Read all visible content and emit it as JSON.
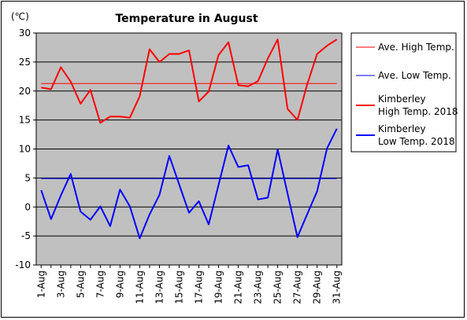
{
  "chart_data": {
    "type": "line",
    "title": "Temperature in August",
    "unit_label": "(℃)",
    "ylim": [
      -10,
      30
    ],
    "y_ticks": [
      30,
      25,
      20,
      15,
      10,
      5,
      0,
      -5,
      -10
    ],
    "x": [
      "1-Aug",
      "2-Aug",
      "3-Aug",
      "4-Aug",
      "5-Aug",
      "6-Aug",
      "7-Aug",
      "8-Aug",
      "9-Aug",
      "10-Aug",
      "11-Aug",
      "12-Aug",
      "13-Aug",
      "14-Aug",
      "15-Aug",
      "16-Aug",
      "17-Aug",
      "18-Aug",
      "19-Aug",
      "20-Aug",
      "21-Aug",
      "22-Aug",
      "23-Aug",
      "24-Aug",
      "25-Aug",
      "26-Aug",
      "27-Aug",
      "28-Aug",
      "29-Aug",
      "30-Aug",
      "31-Aug"
    ],
    "x_tick_labels": [
      "1-Aug",
      "3-Aug",
      "5-Aug",
      "7-Aug",
      "9-Aug",
      "11-Aug",
      "13-Aug",
      "15-Aug",
      "17-Aug",
      "19-Aug",
      "21-Aug",
      "23-Aug",
      "25-Aug",
      "27-Aug",
      "29-Aug",
      "31-Aug"
    ],
    "grid": true,
    "legend_position": "right",
    "plot_background": "#c0c0c0",
    "series": [
      {
        "name": "Ave. High Temp.",
        "color": "#ff0000",
        "width": 1,
        "values": [
          21.3,
          21.3,
          21.3,
          21.3,
          21.3,
          21.3,
          21.3,
          21.3,
          21.3,
          21.3,
          21.3,
          21.3,
          21.3,
          21.3,
          21.3,
          21.3,
          21.3,
          21.3,
          21.3,
          21.3,
          21.3,
          21.3,
          21.3,
          21.3,
          21.3,
          21.3,
          21.3,
          21.3,
          21.3,
          21.3,
          21.3
        ]
      },
      {
        "name": "Ave. Low Temp.",
        "color": "#0000ff",
        "width": 1,
        "values": [
          4.9,
          4.9,
          4.9,
          4.9,
          4.9,
          4.9,
          4.9,
          4.9,
          4.9,
          4.9,
          4.9,
          4.9,
          4.9,
          4.9,
          4.9,
          4.9,
          4.9,
          4.9,
          4.9,
          4.9,
          4.9,
          4.9,
          4.9,
          4.9,
          4.9,
          4.9,
          4.9,
          4.9,
          4.9,
          4.9,
          4.9
        ]
      },
      {
        "name": "Kimberley High Temp. 2018",
        "legend_lines": [
          "Kimberley",
          "High Temp. 2018"
        ],
        "color": "#ff0000",
        "width": 2,
        "values": [
          20.6,
          20.3,
          24.1,
          21.6,
          17.8,
          20.2,
          14.5,
          15.6,
          15.6,
          15.4,
          19.1,
          27.2,
          25.0,
          26.4,
          26.4,
          27.0,
          18.2,
          19.9,
          26.2,
          28.4,
          21.0,
          20.8,
          21.7,
          25.6,
          28.9,
          16.9,
          15.0,
          21.2,
          26.4,
          27.8,
          28.9
        ]
      },
      {
        "name": "Kimberley Low Temp. 2018",
        "legend_lines": [
          "Kimberley",
          "Low Temp. 2018"
        ],
        "color": "#0000ff",
        "width": 2,
        "values": [
          2.9,
          -2.1,
          2.0,
          5.7,
          -0.8,
          -2.2,
          0.1,
          -3.3,
          3.0,
          0.1,
          -5.4,
          -1.3,
          2.1,
          8.8,
          3.9,
          -1.0,
          1.0,
          -3.0,
          3.8,
          10.6,
          6.9,
          7.2,
          1.3,
          1.6,
          9.9,
          2.3,
          -5.2,
          -1.2,
          2.7,
          10.1,
          13.5
        ]
      }
    ]
  }
}
